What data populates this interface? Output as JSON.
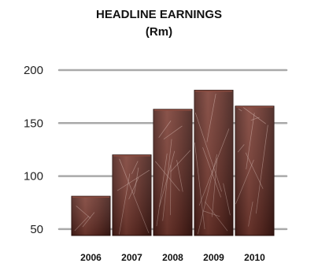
{
  "chart_data": {
    "type": "bar",
    "title": "HEADLINE EARNINGS",
    "subtitle": "(Rm)",
    "categories": [
      "2006",
      "2007",
      "2008",
      "2009",
      "2010"
    ],
    "values": [
      81,
      120,
      163,
      181,
      166
    ],
    "yticks": [
      50,
      100,
      150,
      200
    ],
    "ylim": [
      44,
      200
    ],
    "xlabel": "",
    "ylabel": "",
    "grid": true,
    "colors": {
      "bar_fill": "#5a2a22",
      "bar_highlight": "#8a4a3e",
      "bar_vein": "#d8b8b0",
      "gridline": "#a9a9a9"
    }
  }
}
